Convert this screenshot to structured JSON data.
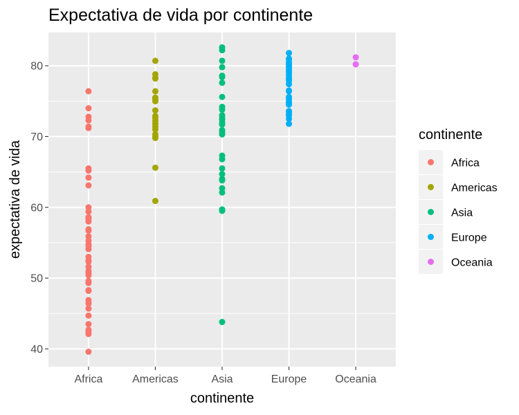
{
  "chart_data": {
    "type": "scatter",
    "title": "Expectativa de vida por continente",
    "xlabel": "continente",
    "ylabel": "expectativa de vida",
    "categories": [
      "Africa",
      "Americas",
      "Asia",
      "Europe",
      "Oceania"
    ],
    "ylim": [
      37.5,
      84.7
    ],
    "yticks": [
      40,
      50,
      60,
      70,
      80
    ],
    "grid": true,
    "legend": {
      "title": "continente",
      "position": "right"
    },
    "colors": [
      "#F8766D",
      "#A3A500",
      "#00BF7D",
      "#00B0F6",
      "#E76BF3"
    ],
    "series": [
      {
        "name": "Africa",
        "values": [
          76.4,
          74.0,
          72.8,
          72.3,
          71.4,
          71.2,
          65.5,
          65.2,
          64.2,
          63.1,
          60.0,
          59.4,
          58.6,
          58.4,
          58.0,
          56.9,
          56.7,
          55.9,
          55.3,
          54.8,
          54.5,
          54.1,
          53.0,
          52.5,
          52.3,
          51.6,
          51.0,
          50.7,
          50.4,
          49.6,
          49.3,
          48.3,
          48.2,
          46.9,
          46.5,
          46.4,
          45.7,
          44.7,
          43.5,
          42.7,
          42.4,
          42.1,
          39.6
        ]
      },
      {
        "name": "Americas",
        "values": [
          80.7,
          78.8,
          78.3,
          78.2,
          76.4,
          75.5,
          75.3,
          75.0,
          73.7,
          72.9,
          72.6,
          72.2,
          71.8,
          71.4,
          71.0,
          70.3,
          70.0,
          69.8,
          65.6,
          60.9
        ]
      },
      {
        "name": "Asia",
        "values": [
          82.6,
          82.2,
          80.7,
          79.8,
          78.6,
          78.4,
          77.6,
          75.6,
          74.2,
          73.8,
          73.0,
          72.9,
          72.5,
          72.4,
          72.0,
          71.7,
          70.9,
          70.6,
          70.3,
          67.3,
          66.8,
          65.5,
          64.7,
          64.0,
          63.8,
          62.7,
          62.1,
          59.7,
          59.5,
          43.8
        ]
      },
      {
        "name": "Europe",
        "values": [
          81.8,
          81.0,
          80.9,
          80.5,
          80.2,
          79.9,
          79.8,
          79.4,
          79.3,
          79.0,
          78.7,
          78.3,
          78.1,
          77.9,
          77.4,
          76.5,
          76.4,
          75.6,
          75.3,
          74.9,
          74.7,
          74.5,
          73.6,
          73.3,
          73.0,
          72.5,
          71.8
        ]
      },
      {
        "name": "Oceania",
        "values": [
          81.2,
          80.2
        ]
      }
    ]
  }
}
